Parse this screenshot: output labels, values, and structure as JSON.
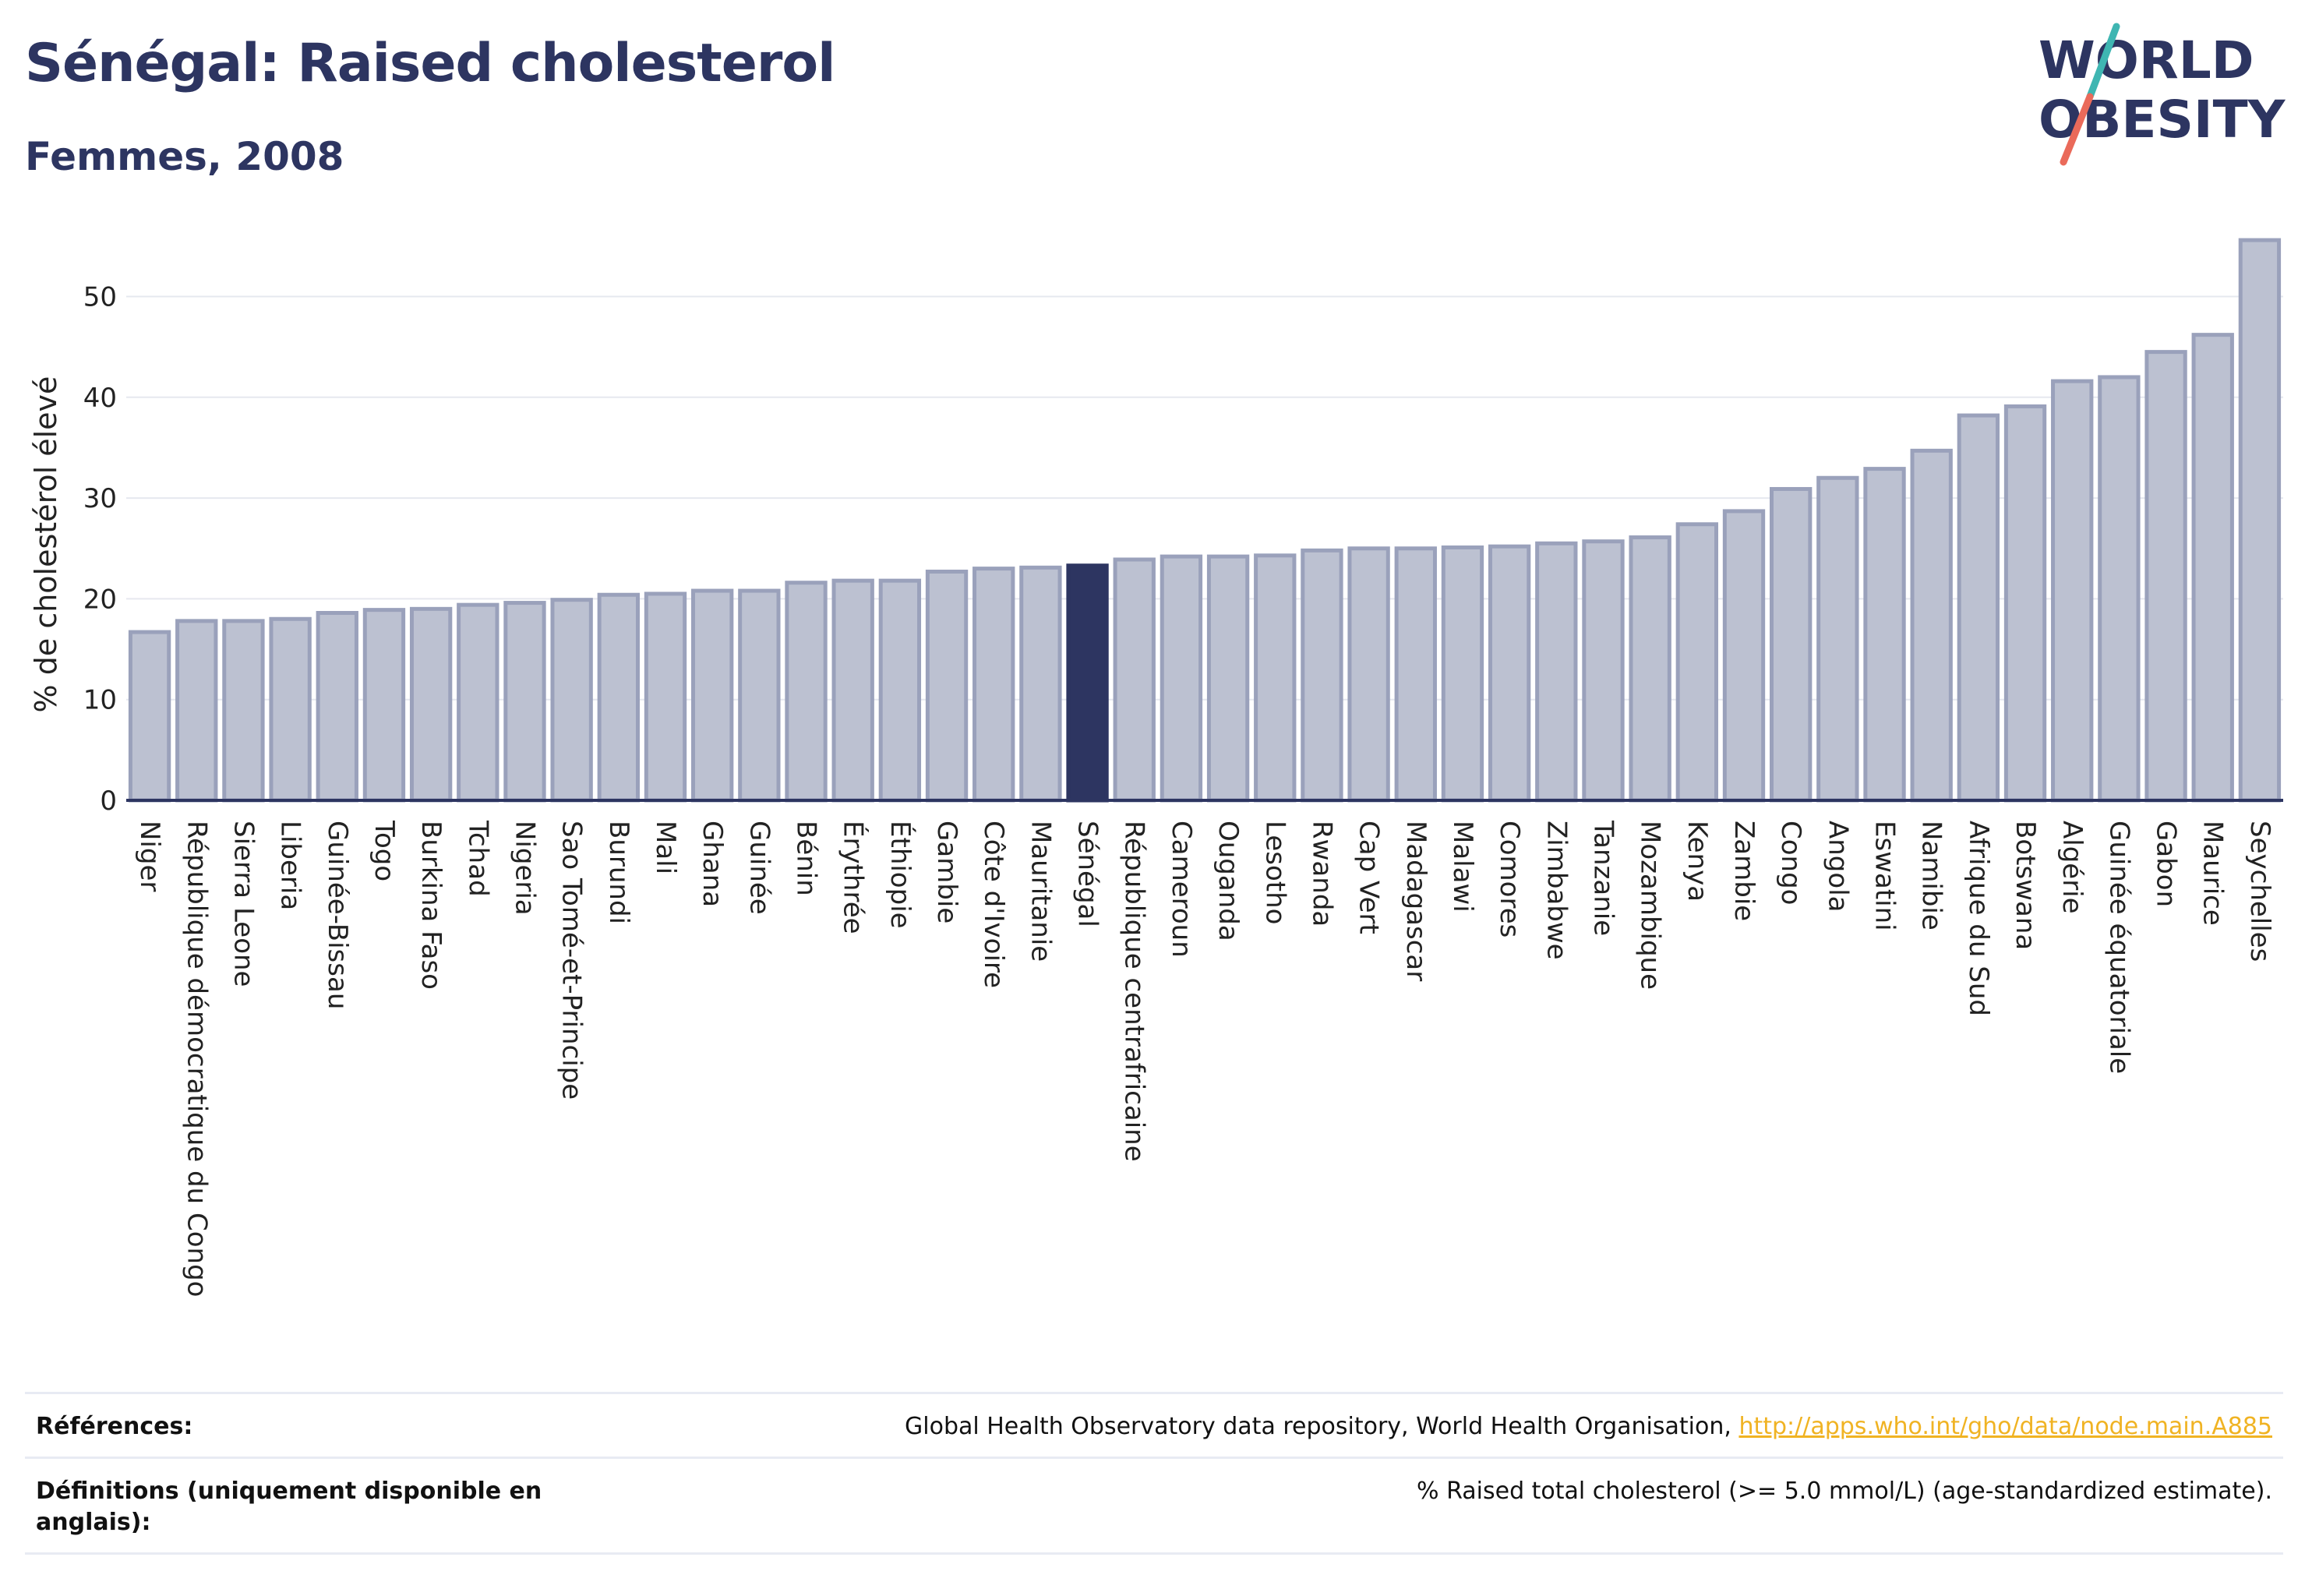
{
  "header": {
    "title": "Sénégal: Raised cholesterol",
    "subtitle": "Femmes, 2008"
  },
  "logo": {
    "line1": "WORLD",
    "line2": "OBESITY",
    "icon": "world-obesity-logo"
  },
  "colors": {
    "bar": "#bcc1d1",
    "bar_stroke": "#9aa1bb",
    "highlight": "#2d3561",
    "axis": "#2d3561",
    "grid": "#e6e8ef",
    "link": "#f0b323"
  },
  "chart_data": {
    "type": "bar",
    "title": "Sénégal: Raised cholesterol",
    "subtitle": "Femmes, 2008",
    "xlabel": "",
    "ylabel": "% de cholestérol élevé",
    "ylim": [
      0,
      57
    ],
    "yticks": [
      0,
      10,
      20,
      30,
      40,
      50
    ],
    "grid": true,
    "highlight": "Sénégal",
    "categories": [
      "Niger",
      "République démocratique du Congo",
      "Sierra Leone",
      "Liberia",
      "Guinée-Bissau",
      "Togo",
      "Burkina Faso",
      "Tchad",
      "Nigeria",
      "Sao Tomé-et-Principe",
      "Burundi",
      "Mali",
      "Ghana",
      "Guinée",
      "Bénin",
      "Érythrée",
      "Éthiopie",
      "Gambie",
      "Côte d'Ivoire",
      "Mauritanie",
      "Sénégal",
      "République centrafricaine",
      "Cameroun",
      "Ouganda",
      "Lesotho",
      "Rwanda",
      "Cap Vert",
      "Madagascar",
      "Malawi",
      "Comores",
      "Zimbabwe",
      "Tanzanie",
      "Mozambique",
      "Kenya",
      "Zambie",
      "Congo",
      "Angola",
      "Eswatini",
      "Namibie",
      "Afrique du Sud",
      "Botswana",
      "Algérie",
      "Guinée équatoriale",
      "Gabon",
      "Maurice",
      "Seychelles"
    ],
    "values": [
      16.7,
      17.8,
      17.8,
      18.0,
      18.6,
      18.9,
      19.0,
      19.4,
      19.6,
      19.9,
      20.4,
      20.5,
      20.8,
      20.8,
      21.6,
      21.8,
      21.8,
      22.7,
      23.0,
      23.1,
      23.3,
      23.9,
      24.2,
      24.2,
      24.3,
      24.8,
      25.0,
      25.0,
      25.1,
      25.2,
      25.5,
      25.7,
      26.1,
      27.4,
      28.7,
      30.9,
      32.0,
      32.9,
      34.7,
      38.2,
      39.1,
      41.6,
      42.0,
      44.5,
      46.2,
      55.6
    ]
  },
  "footer": {
    "references_label": "Références:",
    "references_text": "Global Health Observatory data repository, World Health Organisation, ",
    "references_link": "http://apps.who.int/gho/data/node.main.A885",
    "definitions_label": "Définitions (uniquement disponible en anglais):",
    "definitions_text": "% Raised total cholesterol (>= 5.0 mmol/L) (age-standardized estimate)."
  }
}
